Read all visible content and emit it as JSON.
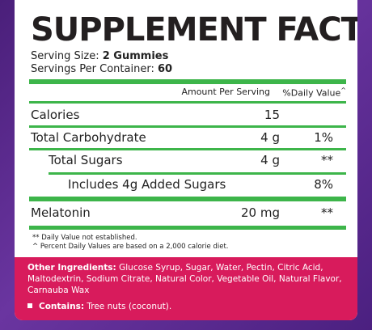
{
  "header": {
    "title": "SUPPLEMENT FACTS",
    "serving_size_label": "Serving Size:",
    "serving_size": "2 Gummies",
    "servings_label": "Servings Per Container:",
    "servings": "60"
  },
  "table": {
    "columns": {
      "amount": "Amount Per Serving",
      "daily_value": "%Daily Value",
      "daily_value_mark": "^"
    },
    "rows": [
      {
        "name": "Calories",
        "amount": "15"
      },
      {
        "name": "Total Carbohydrate",
        "amount": "4 g",
        "dv": "1%"
      },
      {
        "name": "Total Sugars",
        "amount": "4 g",
        "dv": "**"
      },
      {
        "name": "Includes 4g Added Sugars",
        "dv": "8%"
      },
      {
        "name": "Melatonin",
        "amount": "20 mg",
        "dv": "**"
      }
    ]
  },
  "footnotes": [
    "** Daily Value not established.",
    "^ Percent Daily Values are based on a 2,000 calorie diet."
  ],
  "ingredients": {
    "label": "Other Ingredients:",
    "text": "Glucose Syrup, Sugar, Water, Pectin, Citric Acid, Maltodextrin, Sodium Citrate, Natural Color, Vegetable Oil, Natural Flavor, Carnauba Wax"
  },
  "contains": {
    "label": "Contains:",
    "text": "Tree nuts (coconut)."
  }
}
